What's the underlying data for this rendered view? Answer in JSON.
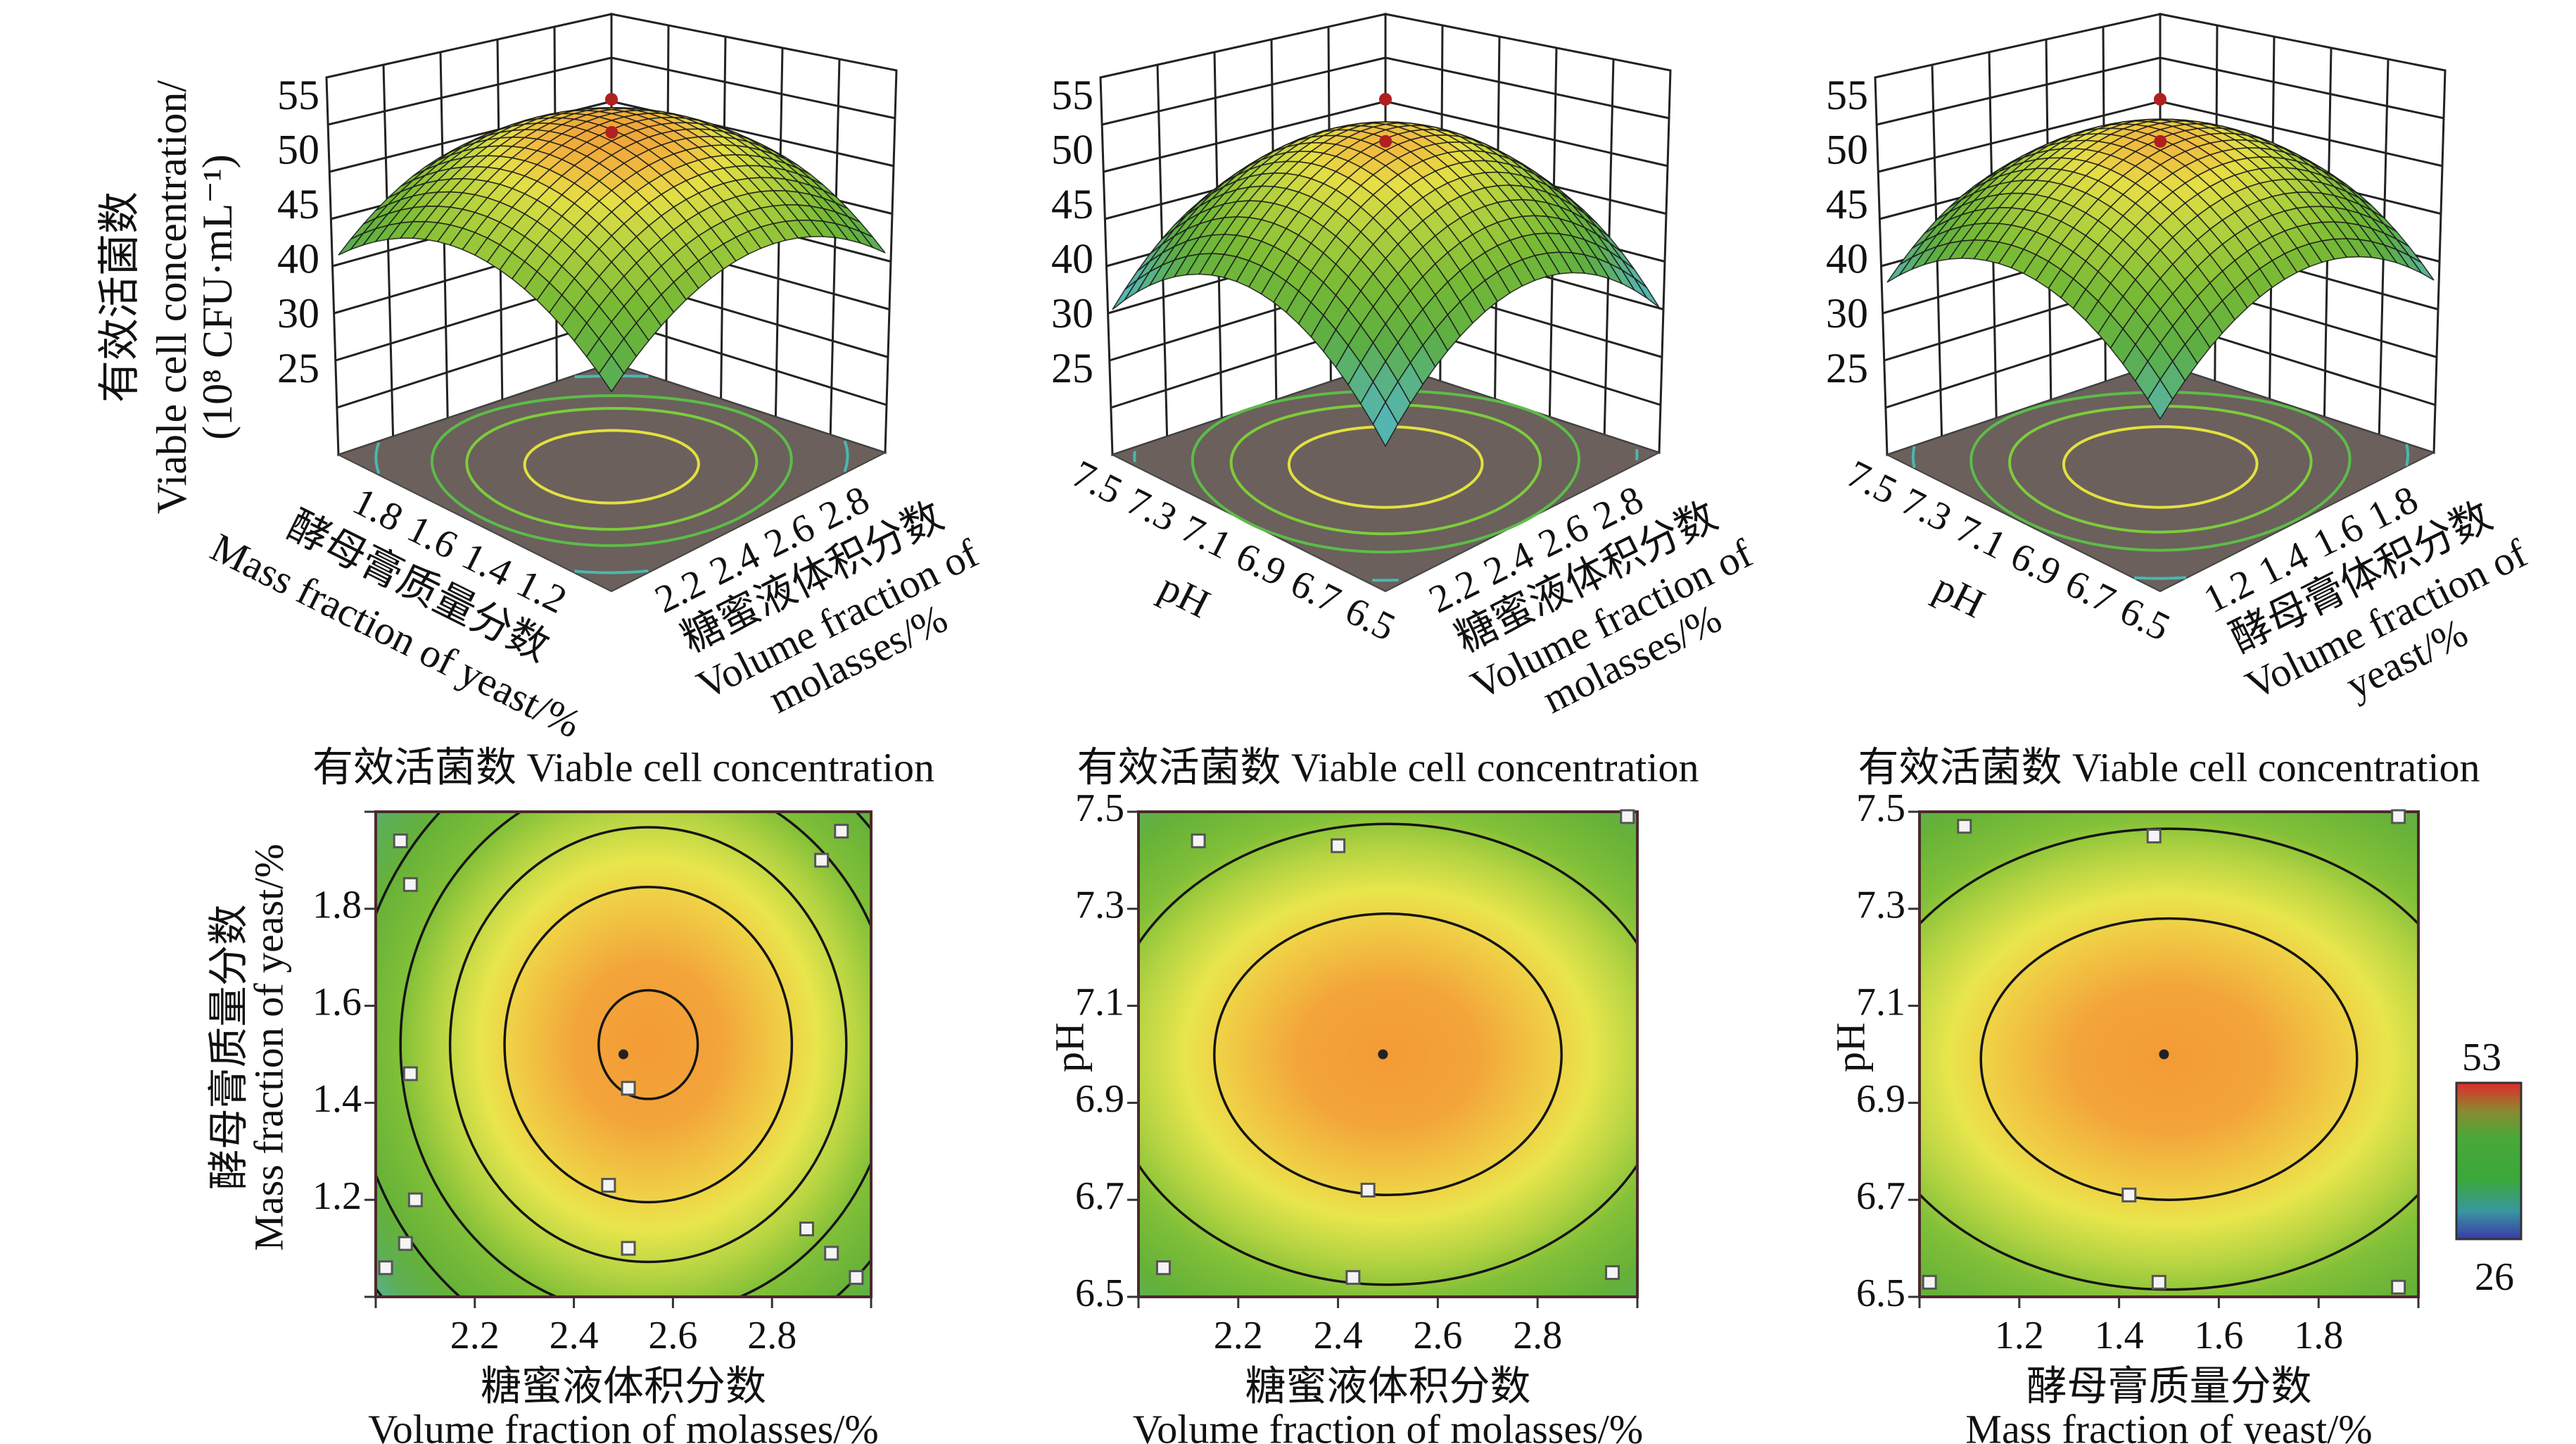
{
  "chart_data": [
    {
      "type": "surface3d",
      "z_axis": {
        "label_lines": [
          "有效活菌数",
          "Viable cell concentration/",
          "(10⁸ CFU·mL⁻¹)"
        ],
        "ticks": [
          "25",
          "30",
          "40",
          "45",
          "50",
          "55"
        ]
      },
      "left_axis": {
        "label_lines": [
          "酵母膏质量分数",
          "Mass fraction of yeast/%"
        ],
        "ticks": [
          "1.8",
          "1.6",
          "1.4",
          "1.2"
        ],
        "range": [
          2.0,
          1.0
        ]
      },
      "right_axis": {
        "label_lines": [
          "糖蜜液体积分数",
          "Volume fraction of",
          "molasses/%"
        ],
        "ticks": [
          "2.2",
          "2.4",
          "2.6",
          "2.8"
        ],
        "range": [
          2.0,
          3.0
        ]
      }
    },
    {
      "type": "surface3d",
      "z_axis": {
        "label_lines": [],
        "ticks": [
          "25",
          "30",
          "40",
          "45",
          "50",
          "55"
        ]
      },
      "left_axis": {
        "label_lines": [
          "pH"
        ],
        "ticks": [
          "7.5",
          "7.3",
          "7.1",
          "6.9",
          "6.7",
          "6.5"
        ],
        "range": [
          7.5,
          6.5
        ]
      },
      "right_axis": {
        "label_lines": [
          "糖蜜液体积分数",
          "Volume fraction of",
          "molasses/%"
        ],
        "ticks": [
          "2.2",
          "2.4",
          "2.6",
          "2.8"
        ],
        "range": [
          2.0,
          3.0
        ]
      }
    },
    {
      "type": "surface3d",
      "z_axis": {
        "label_lines": [],
        "ticks": [
          "25",
          "30",
          "40",
          "45",
          "50",
          "55"
        ]
      },
      "left_axis": {
        "label_lines": [
          "pH"
        ],
        "ticks": [
          "7.5",
          "7.3",
          "7.1",
          "6.9",
          "6.7",
          "6.5"
        ],
        "range": [
          7.5,
          6.5
        ]
      },
      "right_axis": {
        "label_lines": [
          "酵母膏体积分数",
          "Volume fraction of",
          "yeast/%"
        ],
        "ticks": [
          "1.2",
          "1.4",
          "1.6",
          "1.8"
        ],
        "range": [
          1.0,
          2.0
        ]
      }
    },
    {
      "type": "contour",
      "title": "有效活菌数  Viable cell concentration",
      "x_axis": {
        "label_lines": [
          "糖蜜液体积分数",
          "Volume fraction of  molasses/%"
        ],
        "ticks": [
          "2.2",
          "2.4",
          "2.6",
          "2.8"
        ],
        "range": [
          2.0,
          3.0
        ]
      },
      "y_axis": {
        "label_lines": [
          "酵母膏质量分数",
          "Mass fraction of  yeast/%"
        ],
        "ticks": [
          "1.2",
          "1.4",
          "1.6",
          "1.8"
        ],
        "range": [
          1.0,
          2.0
        ]
      },
      "optimum": {
        "x": 2.5,
        "y": 1.5
      },
      "design_points": [
        [
          2.05,
          1.94
        ],
        [
          2.07,
          1.85
        ],
        [
          2.07,
          1.46
        ],
        [
          2.08,
          1.2
        ],
        [
          2.06,
          1.11
        ],
        [
          2.02,
          1.06
        ],
        [
          2.51,
          1.43
        ],
        [
          2.47,
          1.23
        ],
        [
          2.51,
          1.1
        ],
        [
          2.94,
          1.96
        ],
        [
          2.9,
          1.9
        ],
        [
          2.87,
          1.14
        ],
        [
          2.92,
          1.09
        ],
        [
          2.97,
          1.04
        ]
      ]
    },
    {
      "type": "contour",
      "title": "有效活菌数  Viable cell concentration",
      "x_axis": {
        "label_lines": [
          "糖蜜液体积分数",
          "Volume fraction of molasses/%"
        ],
        "ticks": [
          "2.2",
          "2.4",
          "2.6",
          "2.8"
        ],
        "range": [
          2.0,
          3.0
        ]
      },
      "y_axis": {
        "label_lines": [
          "pH"
        ],
        "ticks": [
          "6.5",
          "6.7",
          "6.9",
          "7.1",
          "7.3",
          "7.5"
        ],
        "range": [
          6.5,
          7.5
        ]
      },
      "optimum": {
        "x": 2.49,
        "y": 7.0
      },
      "design_points": [
        [
          2.12,
          7.44
        ],
        [
          2.4,
          7.43
        ],
        [
          2.98,
          7.49
        ],
        [
          2.46,
          6.72
        ],
        [
          2.05,
          6.56
        ],
        [
          2.43,
          6.54
        ],
        [
          2.95,
          6.55
        ]
      ]
    },
    {
      "type": "contour",
      "title": "有效活菌数  Viable cell concentration",
      "x_axis": {
        "label_lines": [
          "酵母膏质量分数",
          "Mass fraction of yeast/%"
        ],
        "ticks": [
          "1.2",
          "1.4",
          "1.6",
          "1.8"
        ],
        "range": [
          1.0,
          2.0
        ]
      },
      "y_axis": {
        "label_lines": [
          "pH"
        ],
        "ticks": [
          "6.5",
          "6.7",
          "6.9",
          "7.1",
          "7.3",
          "7.5"
        ],
        "range": [
          6.5,
          7.5
        ]
      },
      "optimum": {
        "x": 1.49,
        "y": 7.0
      },
      "design_points": [
        [
          1.09,
          7.47
        ],
        [
          1.47,
          7.45
        ],
        [
          1.96,
          7.49
        ],
        [
          1.42,
          6.71
        ],
        [
          1.02,
          6.53
        ],
        [
          1.48,
          6.53
        ],
        [
          1.96,
          6.52
        ]
      ]
    }
  ],
  "colorbar": {
    "max": "53",
    "min": "26",
    "colors": [
      "#e02a2a",
      "#4aa838",
      "#3a3aa8"
    ]
  },
  "colors": {
    "floor": "#6b605c",
    "mesh": "#1a1a1a",
    "axis_frame": "#4a2a2a"
  }
}
